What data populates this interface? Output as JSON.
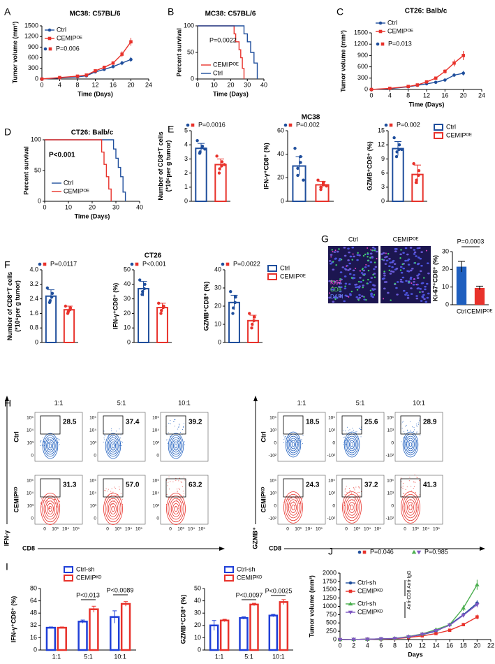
{
  "chart_data": [
    {
      "type": "line",
      "label": "A",
      "title": "MC38: C57BL/6",
      "xlabel": "Time (Days)",
      "ylabel": "Tumor volume (mm³)",
      "xlim": [
        0,
        24
      ],
      "xticks": [
        0,
        4,
        8,
        12,
        16,
        20,
        24
      ],
      "ylim": [
        0,
        1500
      ],
      "yticks": [
        0,
        300,
        600,
        900,
        1200,
        1500
      ],
      "x": [
        0,
        4,
        8,
        10,
        12,
        14,
        16,
        18,
        20
      ],
      "annotations": [
        "P=0.006"
      ],
      "series": [
        {
          "name": "Ctrl",
          "color": "#1f4e9c",
          "marker": "circle",
          "values": [
            0,
            30,
            60,
            90,
            200,
            270,
            350,
            450,
            550
          ],
          "errors": [
            0,
            5,
            10,
            15,
            30,
            40,
            50,
            60,
            70
          ]
        },
        {
          "name": "CEMIPᴼᴱ",
          "color": "#e8322b",
          "marker": "square",
          "values": [
            0,
            40,
            80,
            110,
            230,
            330,
            450,
            700,
            1050
          ],
          "errors": [
            0,
            5,
            10,
            15,
            30,
            40,
            50,
            80,
            110
          ]
        }
      ]
    },
    {
      "type": "step",
      "label": "B",
      "title": "MC38: C57BL/6",
      "xlabel": "Time (Days)",
      "ylabel": "Percent survival",
      "xlim": [
        0,
        40
      ],
      "xticks": [
        0,
        10,
        20,
        30,
        40
      ],
      "ylim": [
        0,
        100
      ],
      "yticks": [
        0,
        50,
        100
      ],
      "annotations": [
        "P=0.0022"
      ],
      "series": [
        {
          "name": "CEMIPᴼᴱ",
          "color": "#e8322b",
          "x": [
            0,
            22,
            22,
            23,
            23,
            25,
            25,
            26,
            26,
            27,
            27,
            28,
            28
          ],
          "values": [
            100,
            100,
            85,
            85,
            70,
            70,
            55,
            55,
            40,
            40,
            20,
            20,
            0
          ]
        },
        {
          "name": "Ctrl",
          "color": "#1f4e9c",
          "x": [
            0,
            28,
            28,
            30,
            30,
            32,
            32,
            34,
            34,
            36,
            36
          ],
          "values": [
            100,
            100,
            85,
            85,
            70,
            70,
            50,
            50,
            30,
            30,
            0
          ]
        }
      ]
    },
    {
      "type": "line",
      "label": "C",
      "title": "CT26: Balb/c",
      "xlabel": "Time (Days)",
      "ylabel": "Tumor volume (mm³)",
      "xlim": [
        0,
        24
      ],
      "xticks": [
        0,
        4,
        8,
        12,
        16,
        20,
        24
      ],
      "ylim": [
        0,
        1500
      ],
      "yticks": [
        0,
        300,
        600,
        900,
        1200,
        1500
      ],
      "x": [
        0,
        4,
        8,
        10,
        12,
        14,
        16,
        18,
        20
      ],
      "annotations": [
        "P=0.013"
      ],
      "series": [
        {
          "name": "Ctrl",
          "color": "#1f4e9c",
          "marker": "circle",
          "values": [
            0,
            20,
            70,
            110,
            150,
            190,
            250,
            380,
            430
          ],
          "errors": [
            0,
            5,
            10,
            15,
            20,
            25,
            30,
            40,
            60
          ]
        },
        {
          "name": "CEMIPᴼᴱ",
          "color": "#e8322b",
          "marker": "square",
          "values": [
            0,
            30,
            80,
            120,
            200,
            300,
            480,
            700,
            900
          ],
          "errors": [
            0,
            5,
            10,
            15,
            25,
            40,
            60,
            90,
            120
          ]
        }
      ]
    },
    {
      "type": "step",
      "label": "D",
      "title": "CT26: Balb/c",
      "xlabel": "Time (Days)",
      "ylabel": "Percent survival",
      "xlim": [
        0,
        40
      ],
      "xticks": [
        0,
        10,
        20,
        30,
        40
      ],
      "ylim": [
        0,
        100
      ],
      "yticks": [
        0,
        50,
        100
      ],
      "annotations": [
        "P<0.001"
      ],
      "series": [
        {
          "name": "Ctrl",
          "color": "#1f4e9c",
          "x": [
            0,
            29,
            29,
            30,
            30,
            31,
            31,
            32,
            32,
            33,
            33,
            34,
            34
          ],
          "values": [
            100,
            100,
            85,
            85,
            70,
            70,
            55,
            55,
            40,
            40,
            15,
            15,
            0
          ]
        },
        {
          "name": "CEMIPᴼᴱ",
          "color": "#e8322b",
          "x": [
            0,
            24,
            24,
            25,
            25,
            26,
            26,
            27,
            27,
            28,
            28
          ],
          "values": [
            100,
            100,
            80,
            80,
            60,
            60,
            40,
            40,
            20,
            20,
            0
          ]
        }
      ]
    },
    {
      "type": "bar_dot",
      "label": "E",
      "ylabel": [
        "Number of CD8⁺T cells",
        "(*10⁶per g tumor)"
      ],
      "ylim": [
        0,
        5
      ],
      "yticks": [
        0,
        1,
        2,
        3,
        4,
        5
      ],
      "colors": [
        "#1f4e9c",
        "#e8322b"
      ],
      "values": [
        3.75,
        2.6
      ],
      "errors": [
        0.35,
        0.4
      ],
      "points": [
        [
          4.3,
          3.9,
          3.8,
          3.5,
          3.4,
          3.7
        ],
        [
          3.2,
          2.8,
          2.5,
          2.3,
          2.0,
          2.6
        ]
      ],
      "annotations": [
        "P=0.0016"
      ]
    },
    {
      "type": "bar_dot",
      "title": "MC38",
      "ylabel": "IFN-γ⁺CD8⁺ (%)",
      "ylim": [
        0,
        60
      ],
      "yticks": [
        0,
        20,
        40,
        60
      ],
      "colors": [
        "#1f4e9c",
        "#e8322b"
      ],
      "values": [
        30,
        14
      ],
      "errors": [
        8,
        3
      ],
      "points": [
        [
          45,
          38,
          33,
          28,
          22,
          18
        ],
        [
          18,
          16,
          14,
          12,
          10,
          13
        ]
      ],
      "annotations": [
        "P=0.002"
      ]
    },
    {
      "type": "bar_dot",
      "ylabel": "GZMB⁺CD8⁺ (%)",
      "ylim": [
        0,
        15
      ],
      "yticks": [
        0,
        3,
        6,
        9,
        12,
        15
      ],
      "colors": [
        "#1f4e9c",
        "#e8322b"
      ],
      "values": [
        11.2,
        5.7
      ],
      "errors": [
        1.5,
        2
      ],
      "points": [
        [
          13.5,
          12,
          11,
          10.5,
          9.5,
          11
        ],
        [
          8,
          6.5,
          5.5,
          4.5,
          4
        ]
      ],
      "annotations": [
        "P=0.002"
      ],
      "legend_labels": [
        "Ctrl",
        "CEMIPᴼᴱ"
      ]
    },
    {
      "type": "bar_dot",
      "label": "F",
      "ylabel": [
        "Number of CD8⁺T cells",
        "(*10⁶per g tumor)"
      ],
      "ylim": [
        0,
        4
      ],
      "yticks": [
        0,
        0.8,
        1.6,
        2.4,
        3.2,
        {
          "value": 4,
          "label": "4.0"
        }
      ],
      "colors": [
        "#1f4e9c",
        "#e8322b"
      ],
      "values": [
        2.55,
        1.8
      ],
      "errors": [
        0.35,
        0.2
      ],
      "points": [
        [
          3.0,
          2.7,
          2.5,
          2.3,
          2.2
        ],
        [
          2.0,
          1.9,
          1.8,
          1.7,
          1.6
        ]
      ],
      "annotations": [
        "P=0.0117"
      ]
    },
    {
      "type": "bar_dot",
      "title": "CT26",
      "ylabel": "IFN-γ⁺CD8⁺ (%)",
      "ylim": [
        0,
        50
      ],
      "yticks": [
        0,
        10,
        20,
        30,
        40,
        50
      ],
      "colors": [
        "#1f4e9c",
        "#e8322b"
      ],
      "values": [
        37,
        24
      ],
      "errors": [
        5,
        3
      ],
      "points": [
        [
          43,
          40,
          37,
          35,
          33
        ],
        [
          27,
          25,
          24,
          22,
          20
        ]
      ],
      "annotations": [
        "P<0.001"
      ]
    },
    {
      "type": "bar_dot",
      "ylabel": "GZMB⁺CD8⁺ (%)",
      "ylim": [
        0,
        40
      ],
      "yticks": [
        0,
        10,
        20,
        30,
        40
      ],
      "colors": [
        "#1f4e9c",
        "#e8322b"
      ],
      "values": [
        22,
        12
      ],
      "errors": [
        4,
        3
      ],
      "points": [
        [
          28,
          25,
          22,
          19,
          16
        ],
        [
          16,
          14,
          12,
          10,
          8
        ]
      ],
      "annotations": [
        "P=0.0022"
      ],
      "legend_labels": [
        "Ctrl",
        "CEMIPᴼᴱ"
      ]
    },
    {
      "type": "bar",
      "ylabel": "Ki-67⁺CD8⁺ (%)",
      "categories": [
        "Ctrl",
        "CEMIPᴼᴱ"
      ],
      "colors": [
        "#1f5fbf",
        "#e8322b"
      ],
      "values": [
        21.5,
        9.5
      ],
      "errors": [
        3,
        1
      ],
      "ylim": [
        0,
        30
      ],
      "yticks": [
        0,
        10,
        20,
        30
      ],
      "annotations": [
        "P=0.0003"
      ]
    },
    {
      "type": "grouped_bar",
      "label": "I",
      "ylabel": "IFN-γ⁺CD8⁺ (%)",
      "categories": [
        "1:1",
        "5:1",
        "10:1"
      ],
      "ylim": [
        0,
        80
      ],
      "yticks": [
        0,
        16,
        32,
        48,
        64,
        80
      ],
      "annotations": [
        "P<0.013",
        "P<0.0089"
      ],
      "series": [
        {
          "name": "Ctrl-sh",
          "color": "#1f3fd8",
          "values": [
            29,
            37,
            43
          ],
          "errors": [
            1,
            2,
            8
          ]
        },
        {
          "name": "CEMIPᴷᴰ",
          "color": "#e8322b",
          "values": [
            29,
            53,
            60
          ],
          "errors": [
            1,
            4,
            3
          ]
        }
      ]
    },
    {
      "type": "grouped_bar",
      "ylabel": "GZMB⁺CD8⁺ (%)",
      "categories": [
        "1:1",
        "5:1",
        "10:1"
      ],
      "ylim": [
        0,
        50
      ],
      "yticks": [
        0,
        10,
        20,
        30,
        40,
        50
      ],
      "annotations": [
        "P<0.0097",
        "P<0.0025"
      ],
      "series": [
        {
          "name": "Ctrl-sh",
          "color": "#1f3fd8",
          "values": [
            20,
            26,
            28
          ],
          "errors": [
            4,
            1,
            1
          ]
        },
        {
          "name": "CEMIPᴷᴰ",
          "color": "#e8322b",
          "values": [
            24,
            37,
            39
          ],
          "errors": [
            1,
            1,
            2
          ]
        }
      ]
    },
    {
      "type": "line",
      "label": "J",
      "xlabel": "Days",
      "ylabel": "Tumor volume (mm³)",
      "xlim": [
        0,
        22
      ],
      "xticks": [
        0,
        2,
        4,
        6,
        8,
        10,
        12,
        14,
        16,
        18,
        20,
        22
      ],
      "ylim": [
        0,
        2000
      ],
      "yticks": [
        0,
        250,
        500,
        750,
        1000,
        1250,
        1500,
        1750,
        2000
      ],
      "x": [
        0,
        2,
        4,
        6,
        8,
        10,
        12,
        14,
        16,
        18,
        20
      ],
      "annotations": [
        "P=0.046",
        "P=0.985",
        "Anti-IgG",
        "Anti-CD8"
      ],
      "series": [
        {
          "name": "Ctrl-sh",
          "color": "#1f4e9c",
          "marker": "circle",
          "values": [
            0,
            5,
            10,
            20,
            30,
            80,
            150,
            250,
            450,
            750,
            1100
          ],
          "errors": [
            0,
            2,
            3,
            5,
            8,
            15,
            20,
            30,
            40,
            60,
            80
          ]
        },
        {
          "name": "CEMIPᴷᴰ",
          "color": "#e8322b",
          "marker": "square",
          "values": [
            0,
            5,
            10,
            15,
            25,
            60,
            110,
            180,
            280,
            450,
            680
          ],
          "errors": [
            0,
            2,
            3,
            5,
            8,
            12,
            18,
            25,
            35,
            50,
            70
          ]
        },
        {
          "name": "Ctrl-sh",
          "color": "#4caf50",
          "marker": "triangle",
          "values": [
            0,
            5,
            10,
            20,
            35,
            90,
            170,
            300,
            450,
            950,
            1650
          ],
          "errors": [
            0,
            2,
            3,
            5,
            8,
            15,
            25,
            35,
            50,
            90,
            150
          ]
        },
        {
          "name": "CEMIPᴷᴰ",
          "color": "#7e57c2",
          "marker": "triangle-down",
          "values": [
            0,
            5,
            10,
            20,
            30,
            80,
            160,
            270,
            430,
            730,
            1050
          ],
          "errors": [
            0,
            2,
            3,
            5,
            8,
            15,
            20,
            30,
            40,
            60,
            80
          ]
        }
      ]
    }
  ],
  "micro": {
    "label": "G",
    "columns": [
      "Ctrl",
      "CEMIPᴼᴱ"
    ],
    "stains": [
      "Ki67",
      "CD8",
      "DAPI"
    ]
  },
  "flow": {
    "label": "H",
    "x_ticks": [
      "0",
      "10³",
      "10⁴",
      "10⁵"
    ],
    "panels": [
      {
        "y_axis": "IFN-γ",
        "x_axis": "CD8",
        "columns": [
          "1:1",
          "5:1",
          "10:1"
        ],
        "rows": [
          "Ctrl",
          "CEMIPᴷᴰ"
        ],
        "gates": [
          [
            "28.5",
            "37.4",
            "39.2"
          ],
          [
            "31.3",
            "57.0",
            "63.2"
          ]
        ],
        "y_ticks": [
          "10⁵",
          "10⁴",
          "10³",
          "0"
        ]
      },
      {
        "y_axis": "GZMB⁺",
        "x_axis": "CD8",
        "columns": [
          "1:1",
          "5:1",
          "10:1"
        ],
        "rows": [
          "Ctrl",
          "CEMIPᴷᴰ"
        ],
        "gates": [
          [
            "18.5",
            "25.6",
            "28.9"
          ],
          [
            "24.3",
            "37.2",
            "41.3"
          ]
        ],
        "y_ticks": [
          "10⁵",
          "10³",
          "0",
          "-10²"
        ]
      }
    ]
  }
}
